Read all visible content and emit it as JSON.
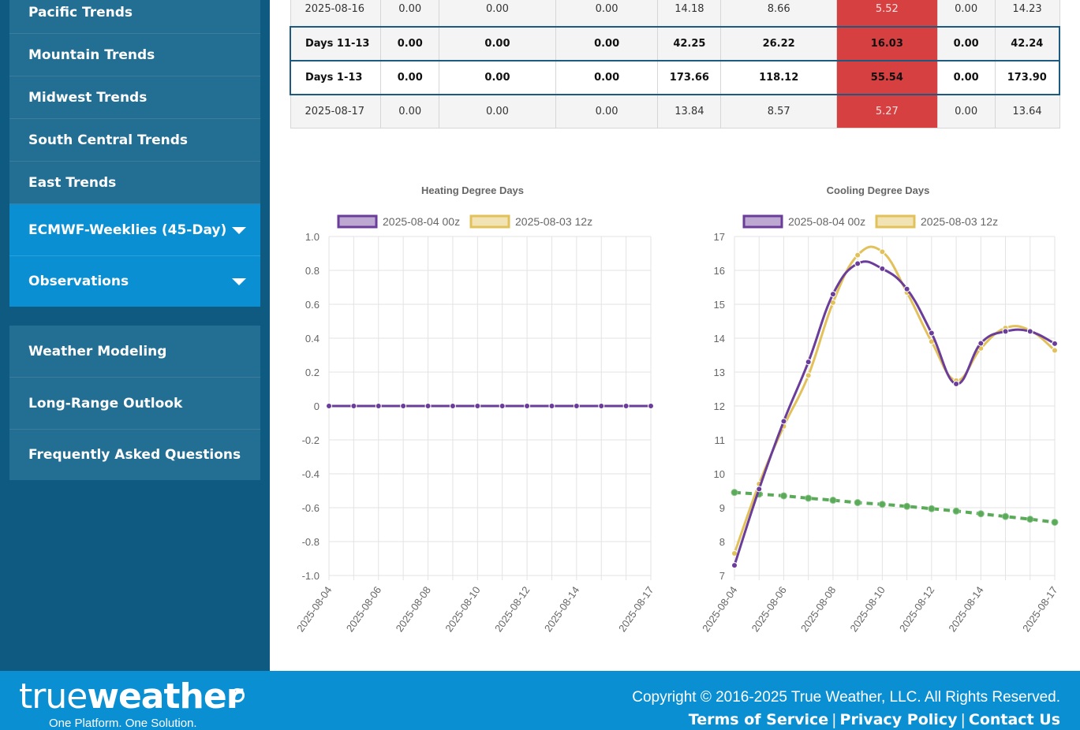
{
  "sidebar": {
    "items": [
      {
        "label": "Pacific Trends"
      },
      {
        "label": "Mountain Trends"
      },
      {
        "label": "Midwest Trends"
      },
      {
        "label": "South Central Trends"
      },
      {
        "label": "East Trends"
      },
      {
        "label": "ECMWF-Weeklies (45-Day)"
      },
      {
        "label": "Observations"
      },
      {
        "label": "Weather Modeling"
      },
      {
        "label": "Long-Range Outlook"
      },
      {
        "label": "Frequently Asked Questions"
      }
    ]
  },
  "table": {
    "rows": [
      {
        "label": "2025-08-16",
        "cells": [
          "0.00",
          "0.00",
          "0.00",
          "14.18",
          "8.66",
          "5.52",
          "0.00",
          "14.23"
        ]
      },
      {
        "label": "Days 11-13",
        "cells": [
          "0.00",
          "0.00",
          "0.00",
          "42.25",
          "26.22",
          "16.03",
          "0.00",
          "42.24"
        ]
      },
      {
        "label": "Days 1-13",
        "cells": [
          "0.00",
          "0.00",
          "0.00",
          "173.66",
          "118.12",
          "55.54",
          "0.00",
          "173.90"
        ]
      },
      {
        "label": "2025-08-17",
        "cells": [
          "0.00",
          "0.00",
          "0.00",
          "13.84",
          "8.57",
          "5.27",
          "0.00",
          "13.64"
        ]
      }
    ]
  },
  "colors": {
    "purple": "#6a3d9a",
    "gold": "#e2c15a",
    "green": "#5aaa5a",
    "hot": "#d64040",
    "sidebar": "#0e5a80",
    "footer": "#0b8fd3"
  },
  "chart_data": [
    {
      "type": "line",
      "title": "Heating Degree Days",
      "x": [
        "2025-08-04",
        "2025-08-05",
        "2025-08-06",
        "2025-08-07",
        "2025-08-08",
        "2025-08-09",
        "2025-08-10",
        "2025-08-11",
        "2025-08-12",
        "2025-08-13",
        "2025-08-14",
        "2025-08-15",
        "2025-08-16",
        "2025-08-17"
      ],
      "xtick_labels": [
        "2025-08-04",
        "2025-08-06",
        "2025-08-08",
        "2025-08-10",
        "2025-08-12",
        "2025-08-14",
        "2025-08-17"
      ],
      "ylim": [
        -1.0,
        1.0
      ],
      "yticks": [
        "1.0",
        "0.8",
        "0.6",
        "0.4",
        "0.2",
        "0",
        "-0.2",
        "-0.4",
        "-0.6",
        "-0.8",
        "-1.0"
      ],
      "legend_position": "top",
      "grid": true,
      "series": [
        {
          "name": "2025-08-04 00z",
          "color": "#6a3d9a",
          "values": [
            0,
            0,
            0,
            0,
            0,
            0,
            0,
            0,
            0,
            0,
            0,
            0,
            0,
            0
          ]
        },
        {
          "name": "2025-08-03 12z",
          "color": "#e2c15a",
          "values": [
            0,
            0,
            0,
            0,
            0,
            0,
            0,
            0,
            0,
            0,
            0,
            0,
            0,
            0
          ]
        }
      ]
    },
    {
      "type": "line",
      "title": "Cooling Degree Days",
      "x": [
        "2025-08-04",
        "2025-08-05",
        "2025-08-06",
        "2025-08-07",
        "2025-08-08",
        "2025-08-09",
        "2025-08-10",
        "2025-08-11",
        "2025-08-12",
        "2025-08-13",
        "2025-08-14",
        "2025-08-15",
        "2025-08-16",
        "2025-08-17"
      ],
      "xtick_labels": [
        "2025-08-04",
        "2025-08-06",
        "2025-08-08",
        "2025-08-10",
        "2025-08-12",
        "2025-08-14",
        "2025-08-17"
      ],
      "ylim": [
        7,
        17
      ],
      "yticks": [
        "17",
        "16",
        "15",
        "14",
        "13",
        "12",
        "11",
        "10",
        "9",
        "8",
        "7"
      ],
      "legend_position": "top",
      "grid": true,
      "series": [
        {
          "name": "2025-08-04 00z",
          "color": "#6a3d9a",
          "values": [
            7.3,
            9.55,
            11.55,
            13.3,
            15.3,
            16.2,
            16.05,
            15.45,
            14.15,
            12.65,
            13.85,
            14.2,
            14.2,
            13.84
          ]
        },
        {
          "name": "2025-08-03 12z",
          "color": "#e2c15a",
          "values": [
            7.65,
            9.7,
            11.4,
            12.9,
            15.05,
            16.45,
            16.55,
            15.35,
            13.9,
            12.75,
            13.7,
            14.3,
            14.23,
            13.64
          ]
        },
        {
          "color": "#5aaa5a",
          "dashed": true,
          "values": [
            9.45,
            9.4,
            9.35,
            9.28,
            9.22,
            9.15,
            9.1,
            9.04,
            8.97,
            8.9,
            8.82,
            8.74,
            8.66,
            8.57
          ]
        }
      ]
    }
  ],
  "footer": {
    "logo_text_a": "true",
    "logo_text_b": "weather",
    "tagline": "One Platform. One Solution.",
    "copyright": "Copyright © 2016-2025 True Weather, LLC. All Rights Reserved.",
    "links": [
      "Terms of Service",
      "Privacy Policy",
      "Contact Us"
    ]
  }
}
